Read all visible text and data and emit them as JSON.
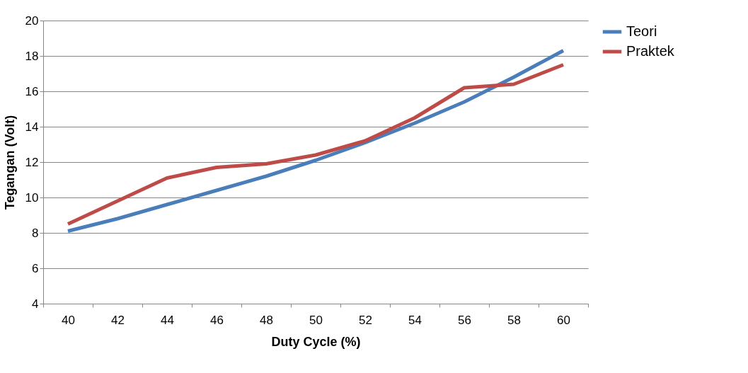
{
  "chart_data": {
    "type": "line",
    "xlabel": "Duty Cycle (%)",
    "ylabel": "Tegangan (Volt)",
    "categories": [
      "40",
      "42",
      "44",
      "46",
      "48",
      "50",
      "52",
      "54",
      "56",
      "58",
      "60"
    ],
    "series": [
      {
        "name": "Teori",
        "color": "#4a7ebb",
        "values": [
          8.1,
          8.8,
          9.6,
          10.4,
          11.2,
          12.1,
          13.1,
          14.2,
          15.4,
          16.8,
          18.3
        ]
      },
      {
        "name": "Praktek",
        "color": "#be4b48",
        "values": [
          8.5,
          9.8,
          11.1,
          11.7,
          11.9,
          12.4,
          13.2,
          14.5,
          16.2,
          16.4,
          17.5
        ]
      }
    ],
    "ylim": [
      4,
      20
    ],
    "yticks": [
      4,
      6,
      8,
      10,
      12,
      14,
      16,
      18,
      20
    ],
    "grid": "y",
    "legend": "right",
    "marker": "none",
    "line_style": "solid"
  }
}
